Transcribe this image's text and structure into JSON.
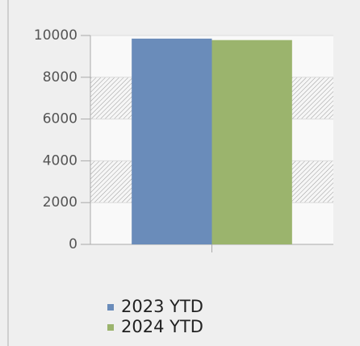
{
  "chart_data": {
    "type": "bar",
    "categories": [
      null
    ],
    "series": [
      {
        "name": "2023 YTD",
        "color": "#6a8cba",
        "values": [
          9850
        ]
      },
      {
        "name": "2024 YTD",
        "color": "#9bb46d",
        "values": [
          9780
        ]
      }
    ],
    "ylim": [
      0,
      10000
    ],
    "yticks": [
      0,
      2000,
      4000,
      6000,
      8000,
      10000
    ],
    "grid": true,
    "legend": "bottom"
  }
}
